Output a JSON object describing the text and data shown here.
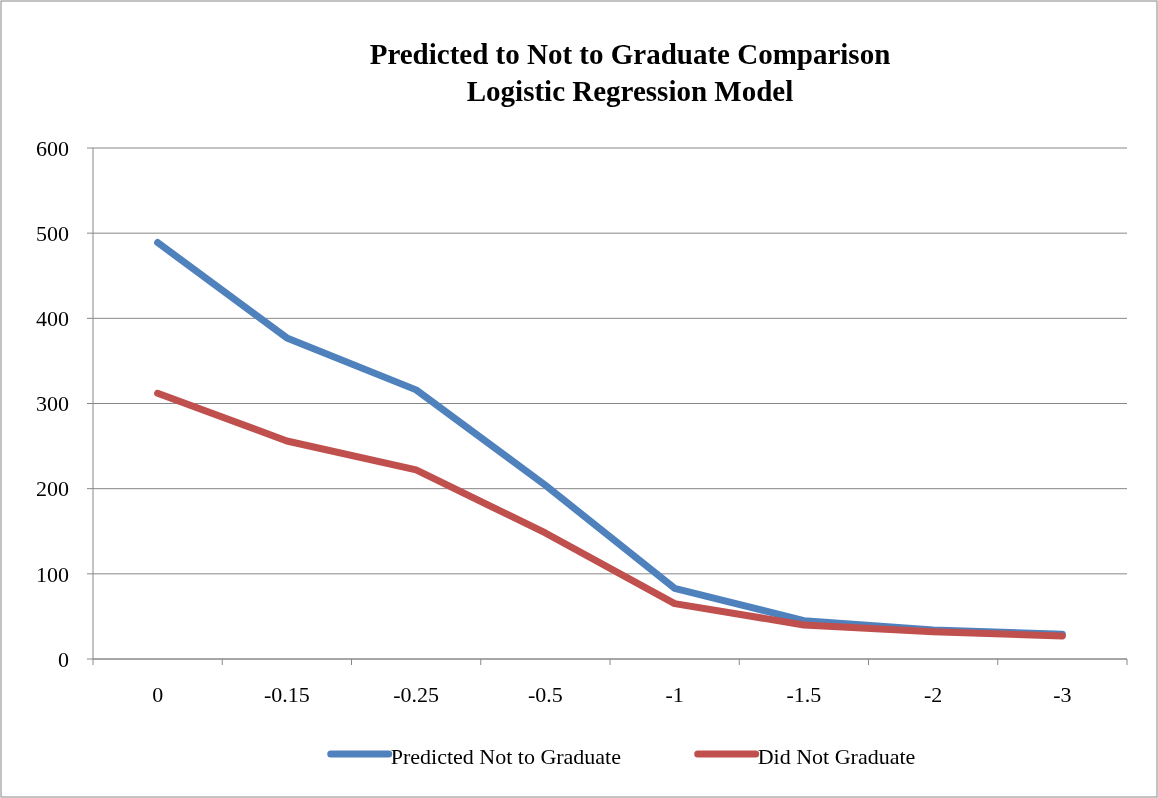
{
  "chart_data": {
    "type": "line",
    "title": "Predicted to Not to Graduate Comparison\nLogistic Regression Model",
    "categories": [
      "0",
      "-0.15",
      "-0.25",
      "-0.5",
      "-1",
      "-1.5",
      "-2",
      "-3"
    ],
    "series": [
      {
        "name": "Predicted Not to Graduate",
        "color": "#4f81bd",
        "values": [
          489,
          377,
          316,
          204,
          83,
          45,
          34,
          29
        ]
      },
      {
        "name": "Did Not Graduate",
        "color": "#c0504d",
        "values": [
          312,
          256,
          222,
          148,
          65,
          40,
          32,
          27
        ]
      }
    ],
    "ylim": [
      0,
      600
    ],
    "yticks": [
      0,
      100,
      200,
      300,
      400,
      500,
      600
    ],
    "grid": "y",
    "legend": "bottom",
    "marker": "none",
    "line_style": "solid"
  }
}
